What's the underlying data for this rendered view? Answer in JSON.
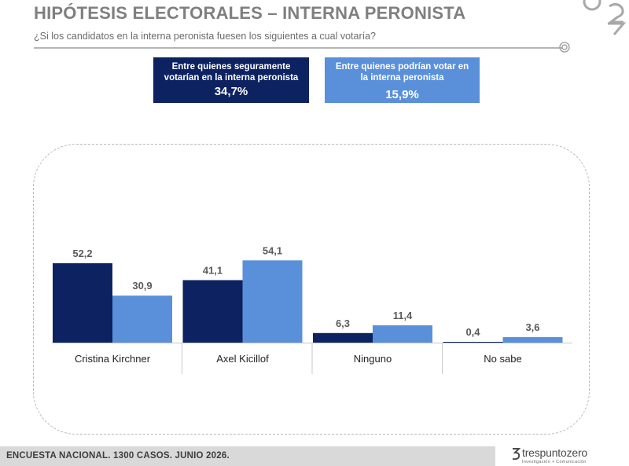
{
  "header": {
    "title": "HIPÓTESIS ELECTORALES – INTERNA PERONISTA",
    "subtitle": "¿Si los candidatos en la interna peronista fuesen los siguientes a cual votaría?"
  },
  "segments": {
    "sure": {
      "line1": "Entre quienes seguramente",
      "line2": "votarían en la interna peronista",
      "value": "34,7%",
      "color": "#0d2260"
    },
    "could": {
      "line1": "Entre quienes  podrían votar en",
      "line2": "la interna peronista",
      "value": "15,9%",
      "color": "#5a8fd9"
    }
  },
  "chart_data": {
    "type": "bar",
    "categories": [
      "Cristina Kirchner",
      "Axel Kicillof",
      "Ninguno",
      "No sabe"
    ],
    "series": [
      {
        "values": [
          52.2,
          41.1,
          6.3,
          0.4
        ],
        "labels": [
          "52,2",
          "41,1",
          "6,3",
          "0,4"
        ],
        "color": "#0d2260"
      },
      {
        "values": [
          30.9,
          54.1,
          11.4,
          3.6
        ],
        "labels": [
          "30,9",
          "54,1",
          "11,4",
          "3,6"
        ],
        "color": "#5a8fd9"
      }
    ],
    "ylim": [
      0,
      60
    ],
    "grid": false,
    "legend": "none"
  },
  "footer": {
    "text": "ENCUESTA NACIONAL. 1300 CASOS. JUNIO 2026."
  },
  "brand": {
    "name": "trespuntozero",
    "tagline": "Investigación + Comunicación"
  }
}
